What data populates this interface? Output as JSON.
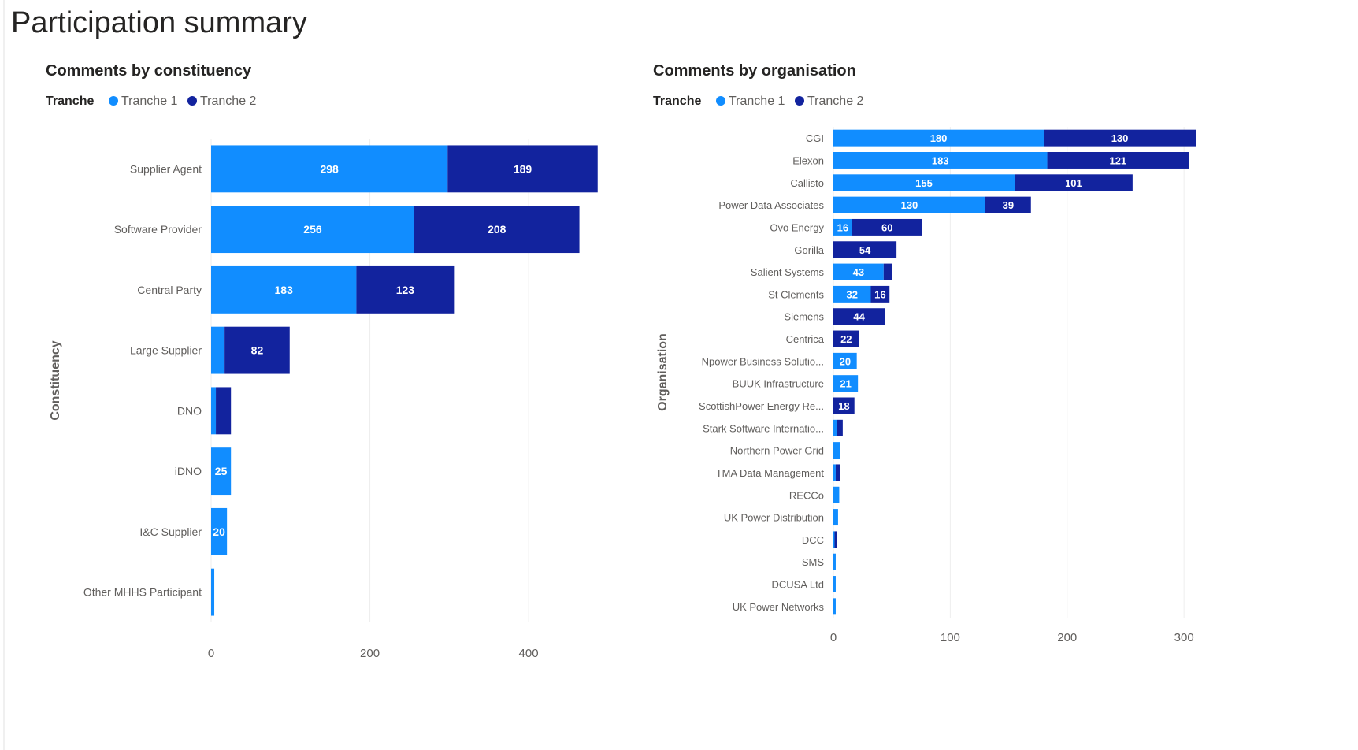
{
  "page": {
    "title": "Participation summary"
  },
  "colors": {
    "tranche1": "#118DFF",
    "tranche2": "#12239E",
    "grid": "#eeeeee",
    "label_text": "#605E5C",
    "title_text": "#252423",
    "data_label_text": "#ffffff"
  },
  "chart_data": [
    {
      "type": "bar",
      "orientation": "horizontal",
      "stacked": true,
      "title": "Comments by constituency",
      "legend": {
        "title": "Tranche",
        "entries": [
          "Tranche 1",
          "Tranche 2"
        ],
        "position": "top-left"
      },
      "ylabel": "Constituency",
      "xlabel": "",
      "categories": [
        "Supplier Agent",
        "Software Provider",
        "Central Party",
        "Large Supplier",
        "DNO",
        "iDNO",
        "I&C Supplier",
        "Other MHHS Participant"
      ],
      "series": [
        {
          "name": "Tranche 1",
          "values": [
            298,
            256,
            183,
            17,
            6,
            25,
            20,
            4
          ]
        },
        {
          "name": "Tranche 2",
          "values": [
            189,
            208,
            123,
            82,
            19,
            0,
            0,
            0
          ]
        }
      ],
      "data_labels": [
        [
          "298",
          "256",
          "183",
          "",
          "",
          "25",
          "20",
          ""
        ],
        [
          "189",
          "208",
          "123",
          "82",
          "",
          "",
          "",
          ""
        ]
      ],
      "x_ticks": [
        0,
        200,
        400
      ],
      "xlim": [
        0,
        520
      ],
      "grid": true
    },
    {
      "type": "bar",
      "orientation": "horizontal",
      "stacked": true,
      "title": "Comments by organisation",
      "legend": {
        "title": "Tranche",
        "entries": [
          "Tranche 1",
          "Tranche 2"
        ],
        "position": "top-left"
      },
      "ylabel": "Organisation",
      "xlabel": "",
      "categories": [
        "CGI",
        "Elexon",
        "Callisto",
        "Power Data Associates",
        "Ovo Energy",
        "Gorilla",
        "Salient Systems",
        "St Clements",
        "Siemens",
        "Centrica",
        "Npower Business Solutio...",
        "BUUK Infrastructure",
        "ScottishPower Energy Re...",
        "Stark Software Internatio...",
        "Northern Power Grid",
        "TMA Data Management",
        "RECCo",
        "UK Power Distribution",
        "DCC",
        "SMS",
        "DCUSA Ltd",
        "UK Power Networks"
      ],
      "series": [
        {
          "name": "Tranche 1",
          "values": [
            180,
            183,
            155,
            130,
            16,
            0,
            43,
            32,
            0,
            0,
            20,
            21,
            0,
            3,
            6,
            2,
            5,
            4,
            1,
            2,
            2,
            2
          ]
        },
        {
          "name": "Tranche 2",
          "values": [
            130,
            121,
            101,
            39,
            60,
            54,
            7,
            16,
            44,
            22,
            0,
            0,
            18,
            5,
            0,
            4,
            0,
            0,
            2,
            0,
            0,
            0
          ]
        }
      ],
      "data_labels": [
        [
          "180",
          "183",
          "155",
          "130",
          "16",
          "",
          "43",
          "32",
          "",
          "",
          "20",
          "21",
          "",
          "",
          "",
          "",
          "",
          "",
          "",
          "",
          "",
          ""
        ],
        [
          "130",
          "121",
          "101",
          "39",
          "60",
          "54",
          "",
          "16",
          "44",
          "22",
          "",
          "",
          "18",
          "",
          "",
          "",
          "",
          "",
          "",
          "",
          "",
          ""
        ]
      ],
      "x_ticks": [
        0,
        100,
        200,
        300
      ],
      "xlim": [
        0,
        310
      ],
      "grid": true
    }
  ]
}
